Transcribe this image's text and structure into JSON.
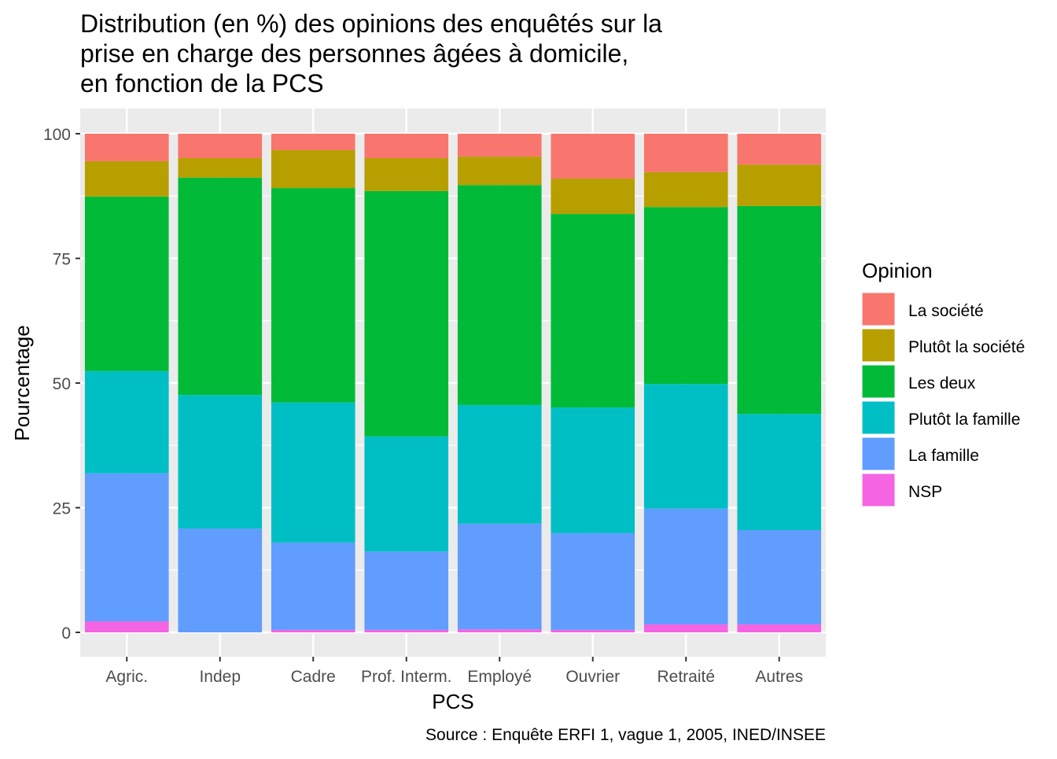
{
  "chart_data": {
    "type": "bar",
    "stacked": true,
    "title": [
      "Distribution (en %) des opinions des enquêtés sur la",
      "prise en charge des personnes âgées à domicile,",
      "en fonction de la PCS"
    ],
    "xlabel": "PCS",
    "ylabel": "Pourcentage",
    "caption": "Source : Enquête ERFI 1, vague 1, 2005, INED/INSEE",
    "ylim": [
      0,
      100
    ],
    "yticks": [
      "0",
      "25",
      "50",
      "75",
      "100"
    ],
    "ytick_values": [
      0,
      25,
      50,
      75,
      100
    ],
    "categories": [
      "Agric.",
      "Indep",
      "Cadre",
      "Prof. Interm.",
      "Employé",
      "Ouvrier",
      "Retraité",
      "Autres"
    ],
    "legend_title": "Opinion",
    "legend_position": "right",
    "series": [
      {
        "name": "La société",
        "color": "#F8766D",
        "values": [
          5.5,
          4.9,
          3.3,
          4.9,
          4.6,
          9.0,
          7.7,
          6.2
        ]
      },
      {
        "name": "Plutôt la société",
        "color": "#B79F00",
        "values": [
          7.1,
          3.9,
          7.6,
          6.6,
          5.7,
          7.1,
          7.0,
          8.3
        ]
      },
      {
        "name": "Les deux",
        "color": "#00BA38",
        "values": [
          35.0,
          43.6,
          43.0,
          49.2,
          44.1,
          38.8,
          35.5,
          41.7
        ]
      },
      {
        "name": "Plutôt la famille",
        "color": "#00BFC4",
        "values": [
          20.5,
          26.8,
          28.1,
          23.1,
          23.8,
          25.2,
          25.0,
          23.3
        ]
      },
      {
        "name": "La famille",
        "color": "#619CFF",
        "values": [
          29.7,
          20.8,
          17.5,
          15.7,
          21.2,
          19.4,
          23.2,
          18.9
        ]
      },
      {
        "name": "NSP",
        "color": "#F564E3",
        "values": [
          2.2,
          0.0,
          0.5,
          0.5,
          0.6,
          0.5,
          1.6,
          1.6
        ]
      }
    ]
  }
}
